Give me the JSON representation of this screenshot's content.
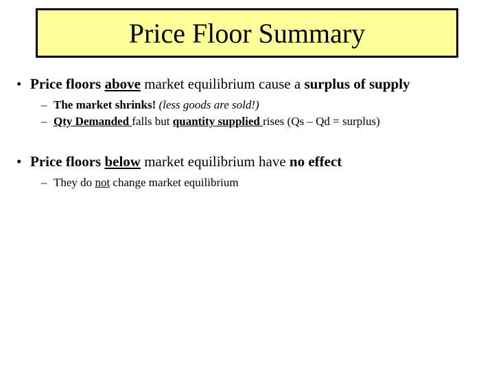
{
  "slide": {
    "title": "Price Floor Summary",
    "title_box": {
      "background_color": "#ffff99",
      "border_color": "#000000",
      "border_width": 3
    },
    "background_color": "#ffffff",
    "text_color": "#000000",
    "font_family": "Times New Roman",
    "bullets": [
      {
        "level": 1,
        "runs": [
          {
            "text": "Price floors ",
            "bold": true
          },
          {
            "text": "above",
            "bold": true,
            "underline": true
          },
          {
            "text": " market equilibrium cause a ",
            "bold": false
          },
          {
            "text": "surplus of supply",
            "bold": true
          }
        ]
      },
      {
        "level": 2,
        "runs": [
          {
            "text": "The market shrinks!",
            "bold": true
          },
          {
            "text": "   "
          },
          {
            "text": "(less goods are sold!)",
            "italic": true
          }
        ]
      },
      {
        "level": 2,
        "runs": [
          {
            "text": "Qty Demanded ",
            "bold": true,
            "underline": true
          },
          {
            "text": "falls but ",
            "bold": false
          },
          {
            "text": "quantity supplied ",
            "bold": true,
            "underline": true
          },
          {
            "text": "rises  (Qs – Qd = surplus)"
          }
        ]
      },
      {
        "level": 1,
        "gap_before": true,
        "runs": [
          {
            "text": "Price floors ",
            "bold": true
          },
          {
            "text": "below",
            "bold": true,
            "underline": true
          },
          {
            "text": " market equilibrium have "
          },
          {
            "text": "no effect",
            "bold": true
          }
        ]
      },
      {
        "level": 2,
        "runs": [
          {
            "text": "They do "
          },
          {
            "text": "not",
            "underline": true
          },
          {
            "text": " change market equilibrium"
          }
        ]
      }
    ],
    "fontsize_title": 40,
    "fontsize_level1": 21,
    "fontsize_level2": 17
  }
}
